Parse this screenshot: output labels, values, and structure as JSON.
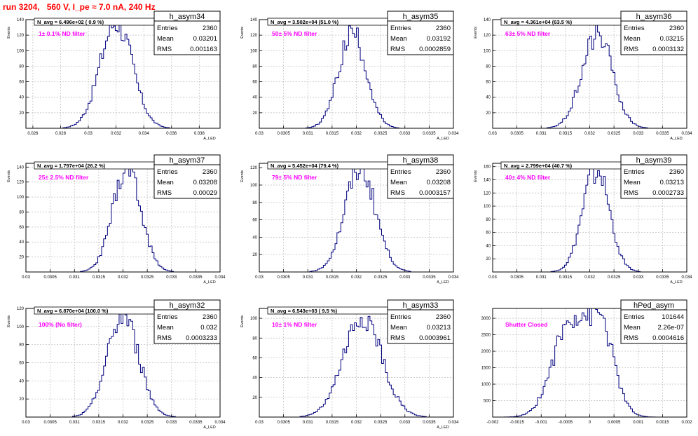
{
  "canvas_title": "run 3204,   560 V, I_pe ≈ 7.0 nA, 240 Hz",
  "colors": {
    "histogram": "#00007f",
    "annotation": "#ff00ff",
    "title": "#ff0000",
    "grid": "#bbbbbb"
  },
  "chart_data": [
    {
      "type": "histogram",
      "name": "h_asym34",
      "stats": {
        "Entries": "2360",
        "Mean": "0.03201",
        "RMS": "0.001163"
      },
      "navg": "N_avg = 6.496e+02 ( 0.9 %)",
      "annotation": "1± 0.1% ND filter",
      "xlabel": "A_LED",
      "ylabel": "Events",
      "xlim": [
        0.0255,
        0.0395
      ],
      "ylim": [
        0,
        140
      ],
      "xticks": [
        "0.026",
        "0.028",
        "0.03",
        "0.032",
        "0.034",
        "0.036",
        "0.038"
      ],
      "xtick_values": [
        0.026,
        0.028,
        0.03,
        0.032,
        0.034,
        0.036,
        0.038
      ],
      "yticks": [
        20,
        40,
        60,
        80,
        100,
        120,
        140
      ],
      "mean": 0.03201,
      "rms": 0.001163,
      "peak": 137
    },
    {
      "type": "histogram",
      "name": "h_asym35",
      "stats": {
        "Entries": "2360",
        "Mean": "0.03192",
        "RMS": "0.0002859"
      },
      "navg": "N_avg = 3.502e+04 (51.0 %)",
      "annotation": "50± 5% ND filter",
      "xlabel": "A_LED",
      "ylabel": "Events",
      "xlim": [
        0.03,
        0.034
      ],
      "ylim": [
        0,
        140
      ],
      "xticks": [
        "0.03",
        "0.0305",
        "0.031",
        "0.0315",
        "0.032",
        "0.0325",
        "0.033",
        "0.0335",
        "0.034"
      ],
      "xtick_values": [
        0.03,
        0.0305,
        0.031,
        0.0315,
        0.032,
        0.0325,
        0.033,
        0.0335,
        0.034
      ],
      "yticks": [
        20,
        40,
        60,
        80,
        100,
        120,
        140
      ],
      "mean": 0.03192,
      "rms": 0.0002859,
      "peak": 122
    },
    {
      "type": "histogram",
      "name": "h_asym36",
      "stats": {
        "Entries": "2360",
        "Mean": "0.03215",
        "RMS": "0.0003132"
      },
      "navg": "N_avg = 4.361e+04 (63.5 %)",
      "annotation": "63± 5% ND filter",
      "xlabel": "A_LED",
      "ylabel": "Events",
      "xlim": [
        0.03,
        0.034
      ],
      "ylim": [
        0,
        140
      ],
      "xticks": [
        "0.03",
        "0.0305",
        "0.031",
        "0.0315",
        "0.032",
        "0.0325",
        "0.033",
        "0.0335",
        "0.034"
      ],
      "xtick_values": [
        0.03,
        0.0305,
        0.031,
        0.0315,
        0.032,
        0.0325,
        0.033,
        0.0335,
        0.034
      ],
      "yticks": [
        20,
        40,
        60,
        80,
        100,
        120,
        140
      ],
      "mean": 0.03215,
      "rms": 0.0003132,
      "peak": 123
    },
    {
      "type": "histogram",
      "name": "h_asym37",
      "stats": {
        "Entries": "2360",
        "Mean": "0.03208",
        "RMS": "0.00029"
      },
      "navg": "N_avg = 1.797e+04 (26.2 %)",
      "annotation": "25± 2.5% ND filter",
      "xlabel": "A_LED",
      "ylabel": "Events",
      "xlim": [
        0.03,
        0.034
      ],
      "ylim": [
        0,
        145
      ],
      "xticks": [
        "0.03",
        "0.0305",
        "0.031",
        "0.0315",
        "0.032",
        "0.0325",
        "0.033",
        "0.0335",
        "0.034"
      ],
      "xtick_values": [
        0.03,
        0.0305,
        0.031,
        0.0315,
        0.032,
        0.0325,
        0.033,
        0.0335,
        0.034
      ],
      "yticks": [
        20,
        40,
        60,
        80,
        100,
        120,
        140
      ],
      "mean": 0.03208,
      "rms": 0.00029,
      "peak": 138
    },
    {
      "type": "histogram",
      "name": "h_asym38",
      "stats": {
        "Entries": "2360",
        "Mean": "0.03208",
        "RMS": "0.0003157"
      },
      "navg": "N_avg = 5.452e+04 (79.4 %)",
      "annotation": "79± 5% ND filter",
      "xlabel": "A_LED",
      "ylabel": "Events",
      "xlim": [
        0.03,
        0.034
      ],
      "ylim": [
        0,
        125
      ],
      "xticks": [
        "0.03",
        "0.0305",
        "0.031",
        "0.0315",
        "0.032",
        "0.0325",
        "0.033",
        "0.0335",
        "0.034"
      ],
      "xtick_values": [
        0.03,
        0.0305,
        0.031,
        0.0315,
        0.032,
        0.0325,
        0.033,
        0.0335,
        0.034
      ],
      "yticks": [
        20,
        40,
        60,
        80,
        100,
        120
      ],
      "mean": 0.03208,
      "rms": 0.0003157,
      "peak": 120
    },
    {
      "type": "histogram",
      "name": "h_asym39",
      "stats": {
        "Entries": "2360",
        "Mean": "0.03213",
        "RMS": "0.0002733"
      },
      "navg": "N_avg = 2.799e+04 (40.7 %)",
      "annotation": "40± 4% ND filter",
      "xlabel": "A_LED",
      "ylabel": "Events",
      "xlim": [
        0.03,
        0.034
      ],
      "ylim": [
        0,
        165
      ],
      "xticks": [
        "0.03",
        "0.0305",
        "0.031",
        "0.0315",
        "0.032",
        "0.0325",
        "0.033",
        "0.0335",
        "0.034"
      ],
      "xtick_values": [
        0.03,
        0.0305,
        0.031,
        0.0315,
        0.032,
        0.0325,
        0.033,
        0.0335,
        0.034
      ],
      "yticks": [
        20,
        40,
        60,
        80,
        100,
        120,
        140,
        160
      ],
      "mean": 0.03213,
      "rms": 0.0002733,
      "peak": 155
    },
    {
      "type": "histogram",
      "name": "h_asym32",
      "stats": {
        "Entries": "2360",
        "Mean": "0.032",
        "RMS": "0.0003233"
      },
      "navg": "N_avg = 6.870e+04 (100.0 %)",
      "annotation": "100% (No filter)",
      "xlabel": "A_LED",
      "ylabel": "Events",
      "xlim": [
        0.03,
        0.034
      ],
      "ylim": [
        0,
        120
      ],
      "xticks": [
        "0.03",
        "0.0305",
        "0.031",
        "0.0315",
        "0.032",
        "0.0325",
        "0.033",
        "0.0335",
        "0.034"
      ],
      "xtick_values": [
        0.03,
        0.0305,
        0.031,
        0.0315,
        0.032,
        0.0325,
        0.033,
        0.0335,
        0.034
      ],
      "yticks": [
        20,
        40,
        60,
        80,
        100,
        120
      ],
      "mean": 0.032,
      "rms": 0.0003233,
      "peak": 112
    },
    {
      "type": "histogram",
      "name": "h_asym33",
      "stats": {
        "Entries": "2360",
        "Mean": "0.03213",
        "RMS": "0.0003961"
      },
      "navg": "N_avg = 6.543e+03 ( 9.5 %)",
      "annotation": "10± 1% ND filter",
      "xlabel": "A_LED",
      "ylabel": "Events",
      "xlim": [
        0.03,
        0.034
      ],
      "ylim": [
        0,
        110
      ],
      "xticks": [
        "0.03",
        "0.0305",
        "0.031",
        "0.0315",
        "0.032",
        "0.0325",
        "0.033",
        "0.0335",
        "0.034"
      ],
      "xtick_values": [
        0.03,
        0.0305,
        0.031,
        0.0315,
        0.032,
        0.0325,
        0.033,
        0.0335,
        0.034
      ],
      "yticks": [
        20,
        40,
        60,
        80,
        100
      ],
      "mean": 0.03213,
      "rms": 0.0003961,
      "peak": 100
    },
    {
      "type": "histogram",
      "name": "hPed_asym",
      "stats": {
        "Entries": "101644",
        "Mean": "2.26e-07",
        "RMS": "0.0004616"
      },
      "navg": "",
      "annotation": "Shutter Closed",
      "xlabel": "",
      "ylabel": "",
      "xlim": [
        -0.002,
        0.002
      ],
      "ylim": [
        0,
        3300
      ],
      "xticks": [
        "-0.002",
        "-0.0015",
        "-0.001",
        "-0.0005",
        "0",
        "0.0005",
        "0.001",
        "0.0015",
        "0.002"
      ],
      "xtick_values": [
        -0.002,
        -0.0015,
        -0.001,
        -0.0005,
        0,
        0.0005,
        0.001,
        0.0015,
        0.002
      ],
      "yticks": [
        500,
        1000,
        1500,
        2000,
        2500,
        3000
      ],
      "mean": 2e-07,
      "rms": 0.0004616,
      "peak": 3150,
      "shape": "double"
    }
  ]
}
